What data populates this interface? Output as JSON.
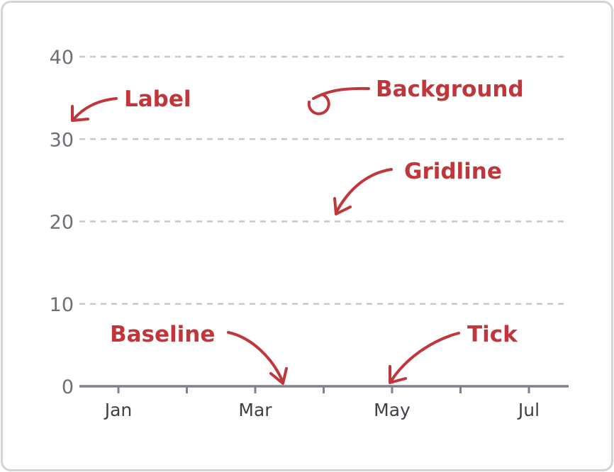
{
  "chart_data": {
    "type": "line",
    "title": "",
    "xlabel": "",
    "ylabel": "",
    "ylim": [
      0,
      40
    ],
    "y_ticks": [
      "0",
      "10",
      "20",
      "30",
      "40"
    ],
    "x_ticks": [
      "Jan",
      "Mar",
      "May",
      "Jul"
    ],
    "x_minor_ticks": 7,
    "grid": true,
    "grid_style": "dashed",
    "series": []
  },
  "annotations": {
    "label": "Label",
    "background": "Background",
    "gridline": "Gridline",
    "baseline": "Baseline",
    "tick": "Tick"
  },
  "colors": {
    "annotation": "#c0363a",
    "gridline": "#c8c8cc",
    "baseline": "#80808a",
    "frame_border": "#d3d3d8"
  }
}
